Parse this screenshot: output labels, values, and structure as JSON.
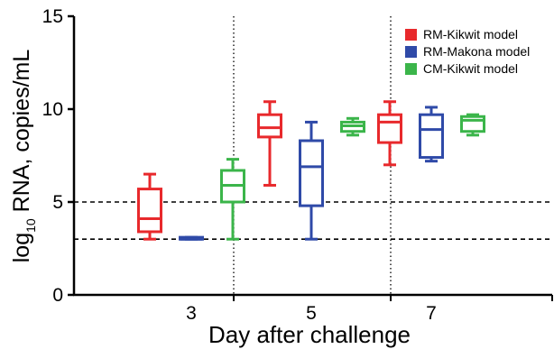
{
  "chart_data": {
    "type": "box",
    "xlabel": "Day after challenge",
    "ylabel": {
      "prefix": "log",
      "subscript": "10",
      "suffix": " RNA, copies/mL"
    },
    "ylim": [
      0,
      15
    ],
    "yticks": [
      0,
      5,
      10,
      15
    ],
    "categories": [
      "3",
      "5",
      "7"
    ],
    "reference_lines": [
      5,
      3
    ],
    "legend_position": "top-right",
    "series": [
      {
        "name": "RM-Kikwit model",
        "color": "#e8292c",
        "boxes": [
          {
            "category": "3",
            "min": 3.0,
            "q1": 3.4,
            "median": 4.1,
            "q3": 5.7,
            "max": 6.5
          },
          {
            "category": "5",
            "min": 5.9,
            "q1": 8.5,
            "median": 9.0,
            "q3": 9.7,
            "max": 10.4
          },
          {
            "category": "7",
            "min": 7.0,
            "q1": 8.2,
            "median": 9.3,
            "q3": 9.7,
            "max": 10.4
          }
        ]
      },
      {
        "name": "RM-Makona model",
        "color": "#2f4aa8",
        "boxes": [
          {
            "category": "3",
            "min": 3.0,
            "q1": 3.0,
            "median": 3.0,
            "q3": 3.1,
            "max": 3.1
          },
          {
            "category": "5",
            "min": 3.0,
            "q1": 4.8,
            "median": 6.9,
            "q3": 8.3,
            "max": 9.3
          },
          {
            "category": "7",
            "min": 7.2,
            "q1": 7.4,
            "median": 8.9,
            "q3": 9.7,
            "max": 10.1
          }
        ]
      },
      {
        "name": "CM-Kikwit model",
        "color": "#3bb54a",
        "boxes": [
          {
            "category": "3",
            "min": 3.0,
            "q1": 5.0,
            "median": 5.9,
            "q3": 6.7,
            "max": 7.3
          },
          {
            "category": "5",
            "min": 8.6,
            "q1": 8.8,
            "median": 9.1,
            "q3": 9.3,
            "max": 9.5
          },
          {
            "category": "7",
            "min": 8.6,
            "q1": 8.8,
            "median": 9.4,
            "q3": 9.6,
            "max": 9.7
          }
        ]
      }
    ]
  }
}
